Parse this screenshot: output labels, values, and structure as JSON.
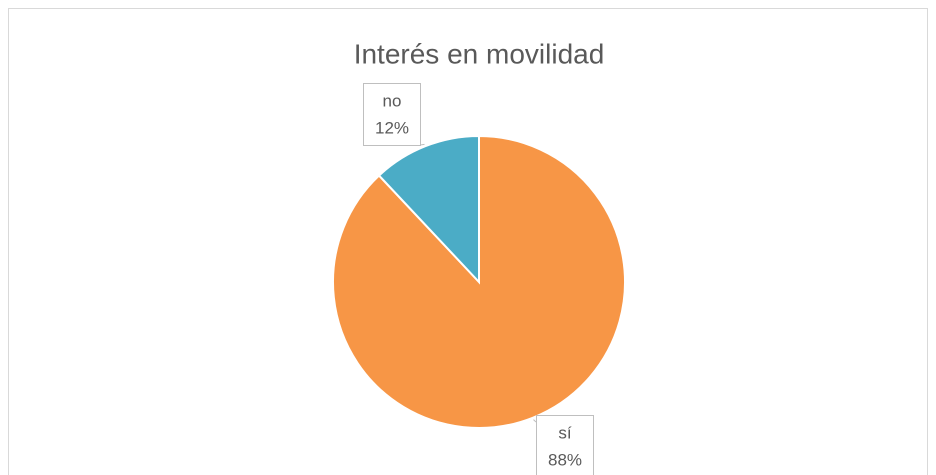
{
  "chart_data": {
    "type": "pie",
    "title": "Interés en movilidad",
    "categories": [
      "sí",
      "no"
    ],
    "values": [
      88,
      12
    ],
    "value_labels": [
      "88%",
      "12%"
    ],
    "colors": [
      "#f79646",
      "#4bacc6"
    ]
  }
}
